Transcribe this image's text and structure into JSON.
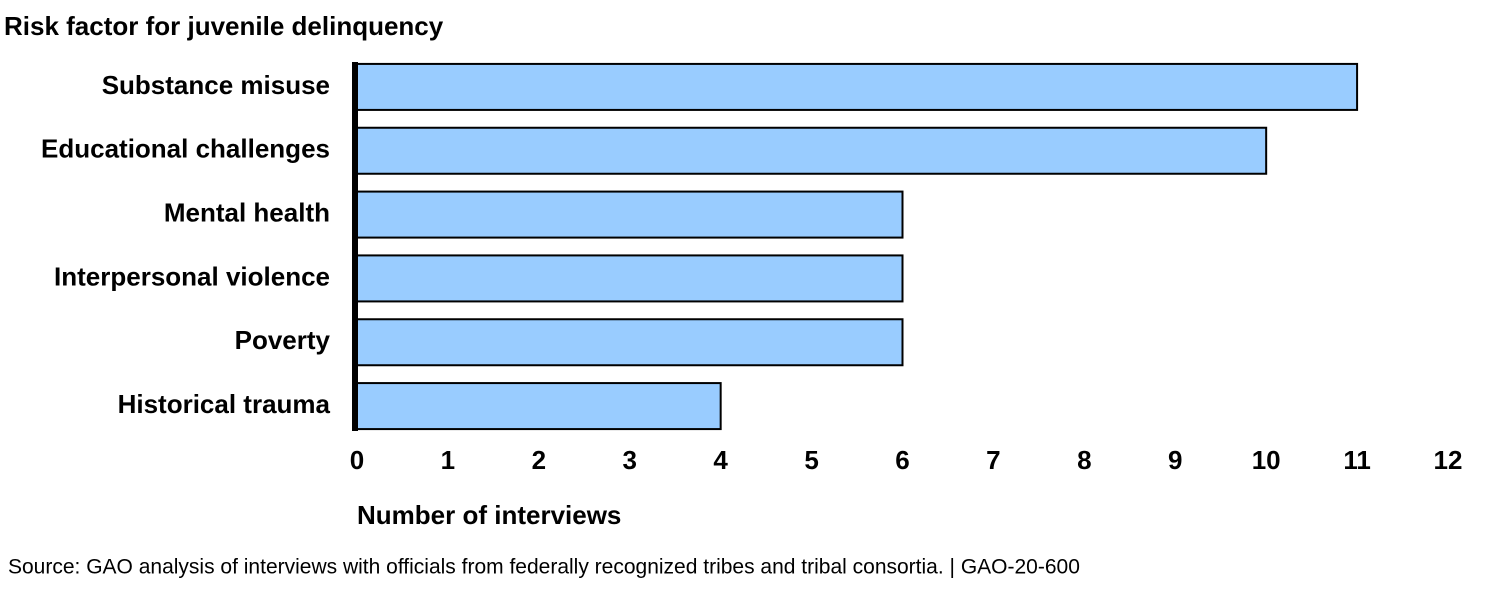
{
  "chart_data": {
    "type": "bar",
    "orientation": "horizontal",
    "ylabel": "Risk factor for juvenile delinquency",
    "xlabel": "Number of interviews",
    "source": "Source: GAO analysis of interviews with officials from federally recognized tribes and tribal consortia.  |  GAO-20-600",
    "categories": [
      "Substance misuse",
      "Educational challenges",
      "Mental health",
      "Interpersonal violence",
      "Poverty",
      "Historical trauma"
    ],
    "values": [
      11,
      10,
      6,
      6,
      6,
      4
    ],
    "color": "#99ccff",
    "xlim": [
      0,
      12
    ],
    "xticks": [
      0,
      1,
      2,
      3,
      4,
      5,
      6,
      7,
      8,
      9,
      10,
      11,
      12
    ],
    "grid": false
  }
}
